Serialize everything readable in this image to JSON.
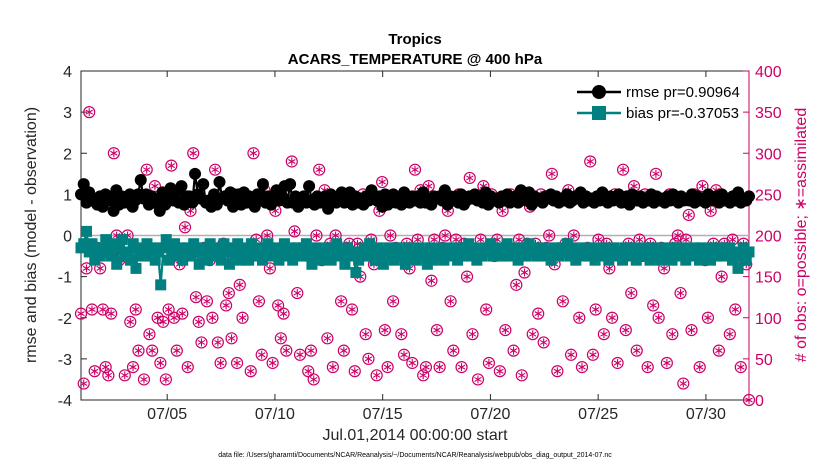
{
  "chart_data": {
    "type": "line",
    "title": "Tropics",
    "subtitle": "ACARS_TEMPERATURE @ 400 hPa",
    "xlabel": "Jul.01,2014 00:00:00 start",
    "ylabel": "rmse and bias (model - observation)",
    "ylabel_right": "# of obs: o=possible; ∗=assimilated",
    "footnote": "data file: /Users/gharamti/Documents/NCAR/Reanalysis/~/Documents/NCAR/Reanalysis/webpub/obs_diag_output_2014-07.nc",
    "xlim": [
      1,
      32
    ],
    "ylim": [
      -4,
      4
    ],
    "ylim_right": [
      0,
      400
    ],
    "x_ticks": [
      5,
      10,
      15,
      20,
      25,
      30
    ],
    "x_tick_labels": [
      "07/05",
      "07/10",
      "07/15",
      "07/20",
      "07/25",
      "07/30"
    ],
    "y_ticks": [
      -4,
      -3,
      -2,
      -1,
      0,
      1,
      2,
      3,
      4
    ],
    "y_tick_labels": [
      "-4",
      "-3",
      "-2",
      "-1",
      "0",
      "1",
      "2",
      "3",
      "4"
    ],
    "y_right_ticks": [
      0,
      50,
      100,
      150,
      200,
      250,
      300,
      350,
      400
    ],
    "y_right_tick_labels": [
      "0",
      "50",
      "100",
      "150",
      "200",
      "250",
      "300",
      "350",
      "400"
    ],
    "legend_position": "top-right",
    "series": [
      {
        "name": "rmse pr=0.90964",
        "color": "#000000",
        "marker": "circle",
        "values": [
          1.0,
          1.25,
          0.8,
          1.05,
          0.85,
          0.9,
          0.75,
          0.95,
          0.7,
          1.0,
          0.85,
          0.9,
          0.6,
          1.1,
          0.75,
          0.95,
          0.8,
          0.9,
          1.0,
          0.7,
          0.85,
          1.0,
          1.35,
          0.9,
          1.0,
          0.75,
          0.95,
          0.8,
          0.85,
          0.6,
          1.05,
          0.75,
          0.95,
          1.15,
          0.85,
          1.05,
          0.8,
          1.2,
          0.75,
          0.95,
          0.95,
          0.8,
          1.5,
          1.0,
          0.9,
          1.25,
          0.8,
          0.85,
          0.7,
          1.0,
          0.75,
          1.3,
          0.9,
          0.95,
          0.85,
          1.05,
          0.7,
          0.9,
          1.0,
          0.75,
          1.05,
          0.8,
          0.95,
          0.9,
          0.7,
          1.0,
          0.85,
          1.25,
          0.8,
          0.95,
          0.75,
          0.9,
          1.1,
          0.85,
          0.95,
          1.2,
          0.8,
          1.25,
          0.8,
          0.95,
          0.7,
          0.8,
          0.95,
          0.8,
          1.2,
          0.85,
          0.75,
          0.95,
          0.8,
          0.85,
          0.95,
          0.65,
          1.0,
          0.85,
          0.8,
          0.85,
          1.05,
          0.8,
          0.9,
          1.05,
          0.75,
          0.95,
          0.8,
          0.9,
          0.75,
          0.95,
          0.85,
          1.1,
          0.9,
          0.85,
          0.95,
          0.7,
          1.0,
          0.75,
          0.85,
          1.0,
          0.8,
          0.9,
          0.75,
          1.05,
          0.9,
          0.8,
          0.95,
          0.85,
          0.95,
          0.8,
          1.05,
          0.8,
          0.9,
          0.75,
          0.95,
          0.9,
          0.95,
          0.85,
          1.1,
          0.75,
          0.95,
          0.85,
          0.95,
          0.8,
          1.0,
          0.75,
          0.85,
          0.95,
          0.9,
          1.0,
          0.85,
          0.9,
          0.8,
          1.05,
          0.75,
          0.95,
          0.85,
          0.9,
          0.8,
          0.95,
          0.85,
          1.0,
          0.8,
          0.85,
          0.95,
          0.8,
          1.1,
          0.9,
          0.85,
          1.05,
          0.75,
          0.95,
          0.85,
          0.9,
          0.8,
          0.95,
          0.9,
          1.0,
          0.85,
          0.95,
          0.8,
          0.9,
          0.85,
          1.0,
          0.8,
          0.85,
          0.95,
          0.9,
          1.05,
          0.8,
          0.95,
          0.85,
          0.9,
          0.8,
          0.95,
          0.85,
          1.05,
          0.9,
          0.8,
          0.95,
          0.85,
          0.9,
          1.0,
          0.8,
          0.85,
          0.95,
          0.75,
          1.0,
          0.9,
          0.85,
          0.95,
          0.8,
          0.9,
          0.85,
          1.0,
          0.8,
          0.95,
          0.85,
          0.9,
          0.8,
          0.95,
          0.85,
          1.0,
          0.9,
          0.8,
          0.95,
          0.85,
          0.9,
          0.85,
          1.0,
          0.8,
          0.95,
          0.85,
          0.9,
          0.8,
          1.0,
          0.85,
          0.9,
          0.95,
          0.8,
          1.0,
          0.85,
          0.9,
          0.8,
          0.95,
          0.85,
          1.05,
          0.8,
          0.9,
          0.85,
          0.95
        ]
      },
      {
        "name": "bias pr=-0.37053",
        "color": "#008080",
        "marker": "square",
        "values": [
          -0.3,
          -0.2,
          0.1,
          -0.4,
          -0.2,
          -0.6,
          -0.3,
          -0.5,
          -0.3,
          -0.1,
          -0.4,
          -0.5,
          -0.2,
          -0.7,
          -0.3,
          -0.1,
          -0.5,
          -0.4,
          -0.6,
          -0.2,
          -0.8,
          -0.3,
          -0.5,
          -0.4,
          -0.2,
          -0.5,
          -0.3,
          -0.6,
          -0.4,
          -1.2,
          -0.3,
          -0.1,
          -0.6,
          -0.4,
          -0.2,
          -0.5,
          -0.3,
          -0.6,
          -0.4,
          -0.3,
          -0.5,
          -0.2,
          -0.4,
          -0.7,
          -0.3,
          -0.5,
          -0.6,
          -0.2,
          -0.4,
          -0.5,
          -0.3,
          -0.6,
          -0.2,
          -0.4,
          -0.7,
          -0.3,
          -0.5,
          -0.2,
          -0.6,
          -0.3,
          -0.4,
          -0.6,
          -0.2,
          -0.5,
          -0.3,
          -0.4,
          -0.6,
          -0.3,
          -0.2,
          -0.5,
          -0.4,
          -0.3,
          -0.6,
          -0.4,
          -0.2,
          -0.5,
          -0.3,
          -0.6,
          -0.4,
          -0.3,
          -0.5,
          -0.3,
          -0.2,
          -0.5,
          -0.7,
          -0.4,
          -0.3,
          -0.6,
          -0.4,
          -0.5,
          -0.3,
          -0.6,
          -0.4,
          -0.2,
          -0.5,
          -0.4,
          -0.7,
          -0.3,
          -0.5,
          -0.4,
          -0.9,
          -0.6,
          -0.4,
          -0.3,
          -0.5,
          -0.2,
          -0.4,
          -0.6,
          -0.3,
          -0.5,
          -0.7,
          -0.4,
          -0.3,
          -0.5,
          -0.6,
          -0.3,
          -0.4,
          -0.5,
          -0.7,
          -0.3,
          -0.5,
          -0.4,
          -0.6,
          -0.3,
          -0.5,
          -0.4,
          -0.7,
          -0.3,
          -0.6,
          -0.4,
          -0.5,
          -0.3,
          -0.6,
          -0.4,
          -0.5,
          -0.3,
          -0.4,
          -0.6,
          -0.3,
          -0.5,
          -0.4,
          -0.2,
          -0.5,
          -0.3,
          -0.6,
          -0.4,
          -0.5,
          -0.3,
          -0.4,
          -0.2,
          -0.5,
          -0.4,
          -0.3,
          -0.5,
          -0.4,
          -0.2,
          -0.5,
          -0.3,
          -0.4,
          -0.6,
          -0.3,
          -0.4,
          -0.5,
          -0.2,
          -0.4,
          -0.3,
          -0.5,
          -0.4,
          -0.3,
          -0.5,
          -0.4,
          -0.6,
          -0.3,
          -0.4,
          -0.5,
          -0.3,
          -0.4,
          -0.2,
          -0.5,
          -0.3,
          -0.6,
          -0.4,
          -0.5,
          -0.3,
          -0.4,
          -0.5,
          -0.3,
          -0.6,
          -0.4,
          -0.5,
          -0.3,
          -0.4,
          -0.6,
          -0.4,
          -0.3,
          -0.5,
          -0.4,
          -0.6,
          -0.3,
          -0.5,
          -0.4,
          -0.3,
          -0.6,
          -0.4,
          -0.5,
          -0.3,
          -0.4,
          -0.6,
          -0.3,
          -0.5,
          -0.4,
          -0.6,
          -0.3,
          -0.5,
          -0.4,
          -0.6,
          -0.3,
          -0.5,
          -0.4,
          -0.3,
          -0.6,
          -0.4,
          -0.5,
          -0.3,
          -0.4,
          -0.6,
          -0.3,
          -0.5,
          -0.4,
          -0.6,
          -0.3,
          -0.5,
          -0.4,
          -0.3,
          -0.5,
          -0.4,
          -0.3,
          -0.6,
          -0.4,
          -0.8,
          -0.5,
          -0.3,
          -0.6,
          -0.4
        ]
      }
    ],
    "obs_counts": [
      105,
      20,
      160,
      350,
      110,
      35,
      185,
      160,
      110,
      40,
      30,
      105,
      300,
      200,
      170,
      175,
      30,
      200,
      95,
      40,
      110,
      60,
      180,
      25,
      280,
      80,
      60,
      260,
      100,
      45,
      95,
      25,
      110,
      285,
      100,
      60,
      165,
      105,
      210,
      40,
      230,
      300,
      125,
      95,
      70,
      185,
      120,
      170,
      100,
      280,
      70,
      45,
      190,
      115,
      130,
      75,
      250,
      45,
      140,
      100,
      240,
      180,
      35,
      300,
      195,
      120,
      55,
      255,
      200,
      160,
      45,
      230,
      115,
      75,
      105,
      60,
      180,
      290,
      205,
      130,
      55,
      245,
      185,
      35,
      60,
      25,
      200,
      280,
      170,
      255,
      75,
      190,
      40,
      200,
      180,
      120,
      60,
      185,
      190,
      110,
      35,
      190,
      150,
      250,
      80,
      50,
      195,
      165,
      30,
      230,
      265,
      85,
      40,
      200,
      120,
      185,
      240,
      80,
      55,
      190,
      160,
      45,
      280,
      195,
      255,
      30,
      40,
      260,
      145,
      195,
      85,
      40,
      185,
      200,
      230,
      120,
      60,
      195,
      250,
      40,
      190,
      150,
      270,
      80,
      180,
      25,
      195,
      260,
      110,
      45,
      250,
      175,
      195,
      35,
      230,
      85,
      185,
      250,
      60,
      140,
      195,
      30,
      155,
      190,
      235,
      80,
      190,
      105,
      250,
      70,
      185,
      200,
      275,
      165,
      35,
      245,
      120,
      190,
      255,
      55,
      200,
      180,
      100,
      40,
      245,
      185,
      290,
      55,
      110,
      195,
      250,
      80,
      190,
      160,
      100,
      250,
      45,
      180,
      280,
      85,
      190,
      130,
      260,
      60,
      195,
      175,
      250,
      40,
      190,
      115,
      275,
      100,
      185,
      160,
      45,
      250,
      80,
      190,
      200,
      130,
      20,
      195,
      225,
      85,
      250,
      180,
      40,
      260,
      170,
      100,
      230,
      190,
      255,
      60,
      150,
      190,
      245,
      80,
      195,
      110,
      250,
      40,
      190,
      165,
      0
    ]
  }
}
